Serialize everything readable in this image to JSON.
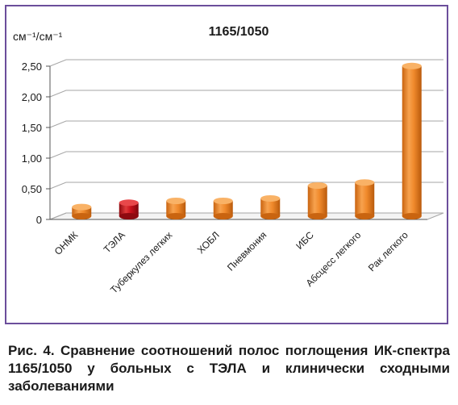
{
  "colors": {
    "frame": "#6b4e9b",
    "bar_default": "#f08a2c",
    "bar_highlight": "#c8101a",
    "grid": "#a6a6a6",
    "text": "#1a1a1a"
  },
  "chart_data": {
    "type": "bar",
    "title": "1165/1050",
    "ylabel": "см⁻¹/см⁻¹",
    "xlabel": "",
    "ylim": [
      0,
      2.5
    ],
    "yticks": [
      "0",
      "0,50",
      "1,00",
      "1,50",
      "2,00",
      "2,50"
    ],
    "grid": true,
    "legend": "none",
    "categories": [
      "ОНМК",
      "ТЭЛА",
      "Туберкулез легких",
      "ХОБЛ",
      "Пневмония",
      "ИБС",
      "Абсцесс легкого",
      "Рак легкого"
    ],
    "values": [
      0.15,
      0.22,
      0.25,
      0.25,
      0.29,
      0.5,
      0.55,
      2.45
    ],
    "highlight_index": 1
  },
  "caption": "Рис. 4. Сравнение соотношений полос поглощения ИК-спектра 1165/1050 у больных с ТЭЛА и клинически сходными заболеваниями"
}
